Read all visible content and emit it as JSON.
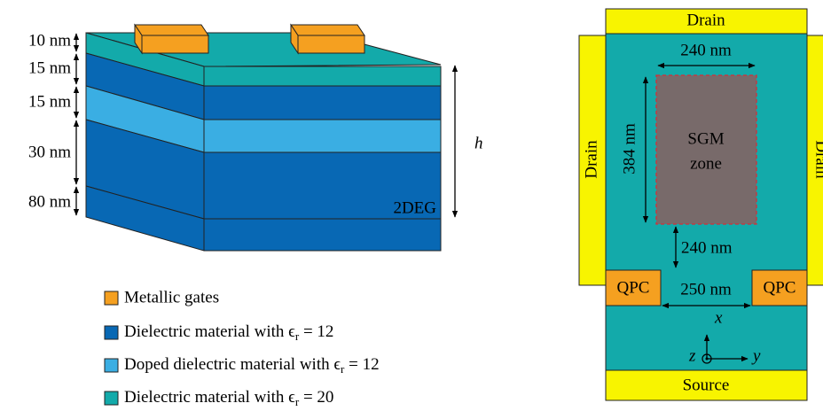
{
  "left": {
    "layer_thicknesses": [
      "10 nm",
      "15 nm",
      "15 nm",
      "30 nm",
      "80 nm"
    ],
    "label_2deg": "2DEG",
    "height_label": "h"
  },
  "legend": [
    {
      "text": "Metallic gates"
    },
    {
      "text": "Dielectric material with ϵ",
      "sub": "r",
      "rest": " = 12"
    },
    {
      "text": "Doped dielectric material with ϵ",
      "sub": "r",
      "rest": " = 12"
    },
    {
      "text": "Dielectric material with ϵ",
      "sub": "r",
      "rest": " = 20"
    }
  ],
  "right": {
    "drain_top": "Drain",
    "drain_left": "Drain",
    "drain_right": "Drain",
    "width_label": "240 nm",
    "height_label": "384 nm",
    "zone_lines": [
      "SGM",
      "zone"
    ],
    "gap_label": "240 nm",
    "qpc_left": "QPC",
    "qpc_right": "QPC",
    "qpc_gap_label": "250 nm",
    "axes": {
      "x": "x",
      "y": "y",
      "z": "z"
    },
    "source": "Source"
  }
}
